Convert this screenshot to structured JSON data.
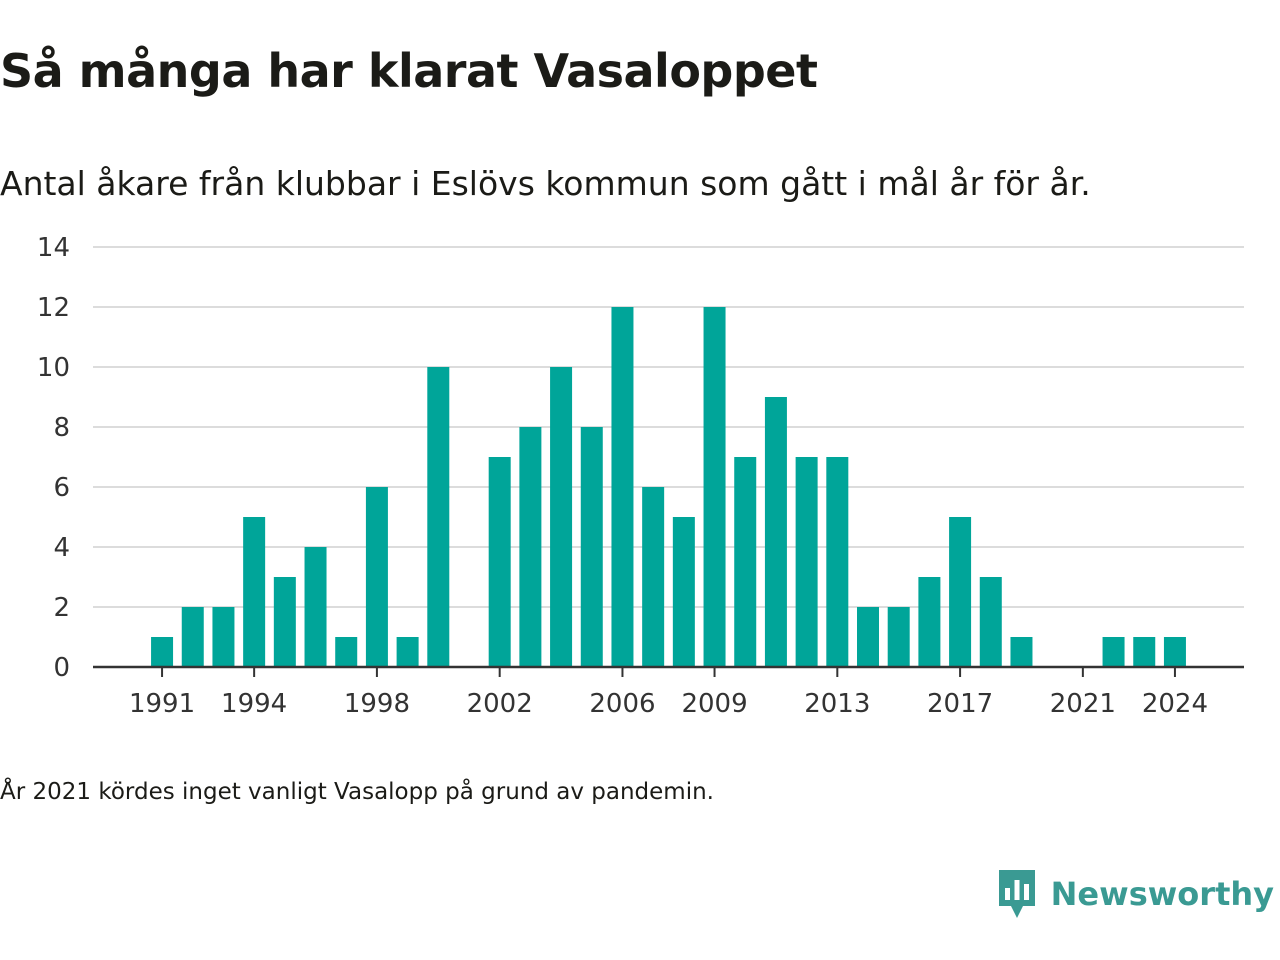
{
  "header": {
    "title": "Så många har klarat Vasaloppet",
    "subtitle": "Antal åkare från klubbar i Eslövs kommun som gått i mål år för år."
  },
  "footnote": "År 2021 kördes inget vanligt Vasalopp på grund av pandemin.",
  "brand": {
    "name": "Newsworthy",
    "icon": "newsworthy-logo-icon",
    "color": "#3a9a93"
  },
  "colors": {
    "bar": "#00a599",
    "grid": "#dcdcdc",
    "axis": "#333333",
    "tick_text": "#333333"
  },
  "chart_data": {
    "type": "bar",
    "title": "Så många har klarat Vasaloppet",
    "xlabel": "",
    "ylabel": "",
    "x": [
      1991,
      1992,
      1993,
      1994,
      1995,
      1996,
      1997,
      1998,
      1999,
      2000,
      2001,
      2002,
      2003,
      2004,
      2005,
      2006,
      2007,
      2008,
      2009,
      2010,
      2011,
      2012,
      2013,
      2014,
      2015,
      2016,
      2017,
      2018,
      2019,
      2020,
      2021,
      2022,
      2023,
      2024
    ],
    "values": [
      1,
      2,
      2,
      5,
      3,
      4,
      1,
      6,
      1,
      10,
      0,
      7,
      8,
      10,
      8,
      12,
      6,
      5,
      12,
      7,
      9,
      7,
      7,
      2,
      2,
      3,
      5,
      3,
      1,
      0,
      0,
      1,
      1,
      1
    ],
    "x_ticks": [
      1991,
      1994,
      1998,
      2002,
      2006,
      2009,
      2013,
      2017,
      2021,
      2024
    ],
    "y_ticks": [
      0,
      2,
      4,
      6,
      8,
      10,
      12,
      14
    ],
    "ylim": [
      0,
      14
    ],
    "xlim": [
      1988.75,
      2026.25
    ],
    "grid": true,
    "legend": "none"
  }
}
